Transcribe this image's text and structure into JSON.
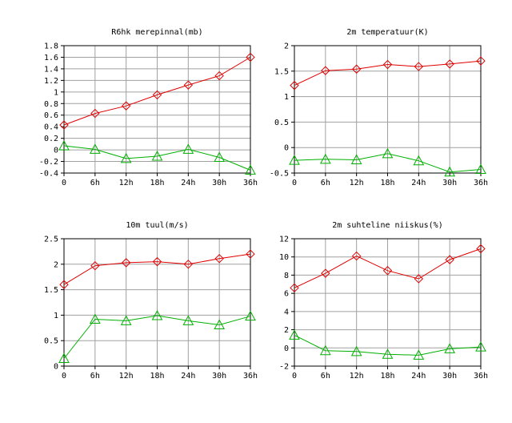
{
  "chart_data": [
    {
      "type": "line",
      "title": "R6hk merepinnal(mb)",
      "categories": [
        "0",
        "6h",
        "12h",
        "18h",
        "24h",
        "30h",
        "36h"
      ],
      "ylim": [
        -0.4,
        1.8
      ],
      "yticks": [
        "1.8",
        "1.6",
        "1.4",
        "1.2",
        "1",
        "0.8",
        "0.6",
        "0.4",
        "0.2",
        "0",
        "-0.2",
        "-0.4"
      ],
      "ytick_values": [
        1.8,
        1.6,
        1.4,
        1.2,
        1,
        0.8,
        0.6,
        0.4,
        0.2,
        0,
        -0.2,
        -0.4
      ],
      "grid": true,
      "series": [
        {
          "marker": "diamond",
          "color": "#e00000",
          "values": [
            0.43,
            0.63,
            0.76,
            0.95,
            1.12,
            1.28,
            1.6
          ]
        },
        {
          "marker": "triangle",
          "color": "#00b000",
          "values": [
            0.07,
            0.01,
            -0.15,
            -0.11,
            0.01,
            -0.13,
            -0.35
          ]
        }
      ]
    },
    {
      "type": "line",
      "title": "2m temperatuur(K)",
      "categories": [
        "0",
        "6h",
        "12h",
        "18h",
        "24h",
        "30h",
        "36h"
      ],
      "ylim": [
        -0.5,
        2
      ],
      "yticks": [
        "2",
        "1.5",
        "1",
        "0.5",
        "0",
        "-0.5"
      ],
      "ytick_values": [
        2,
        1.5,
        1,
        0.5,
        0,
        -0.5
      ],
      "grid": true,
      "series": [
        {
          "marker": "diamond",
          "color": "#e00000",
          "values": [
            1.22,
            1.51,
            1.54,
            1.63,
            1.59,
            1.64,
            1.7
          ]
        },
        {
          "marker": "triangle",
          "color": "#00b000",
          "values": [
            -0.25,
            -0.23,
            -0.24,
            -0.12,
            -0.26,
            -0.48,
            -0.43
          ]
        }
      ]
    },
    {
      "type": "line",
      "title": "10m tuul(m/s)",
      "categories": [
        "0",
        "6h",
        "12h",
        "18h",
        "24h",
        "30h",
        "36h"
      ],
      "ylim": [
        0,
        2.5
      ],
      "yticks": [
        "2.5",
        "2",
        "1.5",
        "1",
        "0.5",
        "0"
      ],
      "ytick_values": [
        2.5,
        2,
        1.5,
        1,
        0.5,
        0
      ],
      "grid": true,
      "series": [
        {
          "marker": "diamond",
          "color": "#e00000",
          "values": [
            1.6,
            1.97,
            2.03,
            2.05,
            2.0,
            2.11,
            2.2
          ]
        },
        {
          "marker": "triangle",
          "color": "#00b000",
          "values": [
            0.15,
            0.92,
            0.89,
            0.99,
            0.89,
            0.81,
            0.98
          ]
        }
      ]
    },
    {
      "type": "line",
      "title": "2m suhteline niiskus(%)",
      "categories": [
        "0",
        "6h",
        "12h",
        "18h",
        "24h",
        "30h",
        "36h"
      ],
      "ylim": [
        -2,
        12
      ],
      "yticks": [
        "12",
        "10",
        "8",
        "6",
        "4",
        "2",
        "0",
        "-2"
      ],
      "ytick_values": [
        12,
        10,
        8,
        6,
        4,
        2,
        0,
        -2
      ],
      "grid": true,
      "series": [
        {
          "marker": "diamond",
          "color": "#e00000",
          "values": [
            6.6,
            8.2,
            10.1,
            8.5,
            7.6,
            9.7,
            10.9
          ]
        },
        {
          "marker": "triangle",
          "color": "#00b000",
          "values": [
            1.4,
            -0.3,
            -0.4,
            -0.7,
            -0.8,
            -0.1,
            0.1
          ]
        }
      ]
    }
  ]
}
